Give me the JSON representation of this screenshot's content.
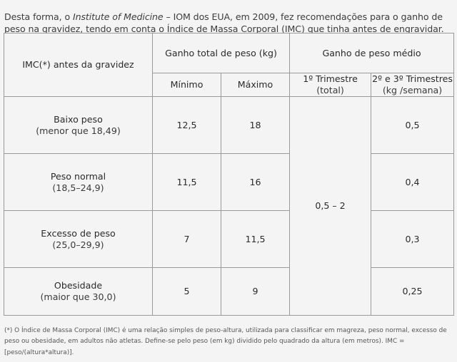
{
  "intro": {
    "part1": "Desta forma, o ",
    "emphasis": "Institute of Medicine",
    "part2": " – IOM dos EUA, em 2009, fez recomendações para o ganho de peso na gravidez, tendo em conta o Índice de Massa Corporal (IMC) que tinha antes de engravidar."
  },
  "table": {
    "header": {
      "imc": "IMC(*) antes da gravidez",
      "total_gain": "Ganho total de peso (kg)",
      "avg_gain": "Ganho de peso médio",
      "min": "Mínimo",
      "max": "Máximo",
      "tri1_title": "1º Trimestre",
      "tri1_sub": "(total)",
      "tri23_title": "2º e 3º Trimestres",
      "tri23_sub": "(kg /semana)"
    },
    "first_trimester_value": "0,5 – 2",
    "rows": [
      {
        "label": "Baixo peso",
        "range": "(menor que 18,49)",
        "min": "12,5",
        "max": "18",
        "weekly": "0,5"
      },
      {
        "label": "Peso normal",
        "range": "(18,5–24,9)",
        "min": "11,5",
        "max": "16",
        "weekly": "0,4"
      },
      {
        "label": "Excesso de peso",
        "range": "(25,0–29,9)",
        "min": "7",
        "max": "11,5",
        "weekly": "0,3"
      },
      {
        "label": "Obesidade",
        "range": "(maior que 30,0)",
        "min": "5",
        "max": "9",
        "weekly": "0,25"
      }
    ]
  },
  "footnote": "(*) O Índice de Massa Corporal (IMC) é uma relação simples de peso-altura, utilizada para classificar em magreza, peso normal, excesso de peso ou obesidade, em adultos não atletas. Define-se pelo peso (em kg) dividido pelo quadrado da altura (em metros). IMC = [peso/(altura*altura)]."
}
